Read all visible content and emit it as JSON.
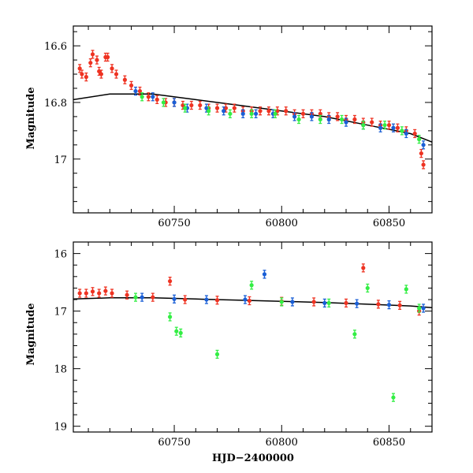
{
  "chart_data": [
    {
      "type": "scatter",
      "panel": "top",
      "title": "",
      "xlabel": "",
      "ylabel": "Magnitude",
      "xlim": [
        60703,
        60870
      ],
      "ylim": [
        16.53,
        17.19
      ],
      "y_inverted": true,
      "x_ticks": [
        60750,
        60800,
        60850
      ],
      "x_tick_labels": [
        "60750",
        "60800",
        "60850"
      ],
      "y_ticks": [
        16.6,
        16.8,
        17.0
      ],
      "y_tick_labels": [
        "16.6",
        "16.8",
        "17"
      ],
      "grid": false,
      "legend": "none",
      "series": [
        {
          "color": "#ee3322",
          "values": [
            [
              60706,
              16.68
            ],
            [
              60707,
              16.7
            ],
            [
              60709,
              16.71
            ],
            [
              60711,
              16.66
            ],
            [
              60712,
              16.63
            ],
            [
              60714,
              16.65
            ],
            [
              60715,
              16.69
            ],
            [
              60716,
              16.7
            ],
            [
              60718,
              16.64
            ],
            [
              60719,
              16.64
            ],
            [
              60721,
              16.68
            ],
            [
              60723,
              16.7
            ],
            [
              60727,
              16.72
            ],
            [
              60730,
              16.74
            ],
            [
              60734,
              16.76
            ],
            [
              60738,
              16.78
            ],
            [
              60742,
              16.79
            ],
            [
              60746,
              16.8
            ],
            [
              60750,
              16.8
            ],
            [
              60754,
              16.81
            ],
            [
              60758,
              16.81
            ],
            [
              60762,
              16.81
            ],
            [
              60766,
              16.82
            ],
            [
              60770,
              16.82
            ],
            [
              60774,
              16.82
            ],
            [
              60778,
              16.82
            ],
            [
              60782,
              16.83
            ],
            [
              60786,
              16.83
            ],
            [
              60790,
              16.83
            ],
            [
              60794,
              16.83
            ],
            [
              60798,
              16.83
            ],
            [
              60802,
              16.83
            ],
            [
              60806,
              16.84
            ],
            [
              60810,
              16.84
            ],
            [
              60814,
              16.84
            ],
            [
              60818,
              16.84
            ],
            [
              60822,
              16.85
            ],
            [
              60826,
              16.85
            ],
            [
              60830,
              16.86
            ],
            [
              60834,
              16.86
            ],
            [
              60838,
              16.87
            ],
            [
              60842,
              16.87
            ],
            [
              60846,
              16.88
            ],
            [
              60850,
              16.88
            ],
            [
              60854,
              16.89
            ],
            [
              60858,
              16.9
            ],
            [
              60862,
              16.91
            ],
            [
              60865,
              16.98
            ],
            [
              60866,
              17.02
            ]
          ]
        },
        {
          "color": "#1a5fd6",
          "values": [
            [
              60732,
              16.76
            ],
            [
              60740,
              16.78
            ],
            [
              60750,
              16.8
            ],
            [
              60756,
              16.82
            ],
            [
              60765,
              16.82
            ],
            [
              60773,
              16.83
            ],
            [
              60782,
              16.84
            ],
            [
              60788,
              16.84
            ],
            [
              60796,
              16.84
            ],
            [
              60806,
              16.85
            ],
            [
              60814,
              16.85
            ],
            [
              60822,
              16.86
            ],
            [
              60830,
              16.87
            ],
            [
              60838,
              16.88
            ],
            [
              60846,
              16.89
            ],
            [
              60852,
              16.89
            ],
            [
              60858,
              16.91
            ],
            [
              60866,
              16.95
            ]
          ]
        },
        {
          "color": "#33ee44",
          "values": [
            [
              60735,
              16.78
            ],
            [
              60745,
              16.8
            ],
            [
              60755,
              16.82
            ],
            [
              60766,
              16.83
            ],
            [
              60776,
              16.84
            ],
            [
              60786,
              16.84
            ],
            [
              60797,
              16.84
            ],
            [
              60808,
              16.86
            ],
            [
              60818,
              16.86
            ],
            [
              60828,
              16.86
            ],
            [
              60838,
              16.88
            ],
            [
              60848,
              16.88
            ],
            [
              60856,
              16.9
            ],
            [
              60864,
              16.93
            ]
          ]
        }
      ],
      "model_curve": {
        "color": "#000000",
        "values": [
          [
            60703,
            16.79
          ],
          [
            60720,
            16.77
          ],
          [
            60740,
            16.77
          ],
          [
            60760,
            16.79
          ],
          [
            60780,
            16.81
          ],
          [
            60800,
            16.83
          ],
          [
            60820,
            16.85
          ],
          [
            60840,
            16.88
          ],
          [
            60860,
            16.91
          ],
          [
            60870,
            16.94
          ]
        ]
      }
    },
    {
      "type": "scatter",
      "panel": "bottom",
      "title": "",
      "xlabel": "HJD−2400000",
      "ylabel": "Magnitude",
      "xlim": [
        60703,
        60870
      ],
      "ylim": [
        15.8,
        19.1
      ],
      "y_inverted": true,
      "x_ticks": [
        60750,
        60800,
        60850
      ],
      "x_tick_labels": [
        "60750",
        "60800",
        "60850"
      ],
      "y_ticks": [
        16,
        17,
        18,
        19
      ],
      "y_tick_labels": [
        "16",
        "17",
        "18",
        "19"
      ],
      "grid": false,
      "legend": "none",
      "series": [
        {
          "color": "#ee3322",
          "values": [
            [
              60706,
              16.69
            ],
            [
              60709,
              16.69
            ],
            [
              60712,
              16.66
            ],
            [
              60715,
              16.69
            ],
            [
              60718,
              16.65
            ],
            [
              60721,
              16.69
            ],
            [
              60728,
              16.72
            ],
            [
              60740,
              16.76
            ],
            [
              60748,
              16.48
            ],
            [
              60755,
              16.8
            ],
            [
              60770,
              16.81
            ],
            [
              60785,
              16.82
            ],
            [
              60800,
              16.83
            ],
            [
              60815,
              16.84
            ],
            [
              60830,
              16.86
            ],
            [
              60838,
              16.25
            ],
            [
              60845,
              16.88
            ],
            [
              60855,
              16.9
            ],
            [
              60864,
              17.0
            ]
          ]
        },
        {
          "color": "#1a5fd6",
          "values": [
            [
              60735,
              16.76
            ],
            [
              60750,
              16.79
            ],
            [
              60765,
              16.8
            ],
            [
              60783,
              16.8
            ],
            [
              60792,
              16.36
            ],
            [
              60805,
              16.84
            ],
            [
              60820,
              16.86
            ],
            [
              60835,
              16.87
            ],
            [
              60850,
              16.89
            ],
            [
              60866,
              16.95
            ]
          ]
        },
        {
          "color": "#33ee44",
          "values": [
            [
              60732,
              16.76
            ],
            [
              60748,
              17.1
            ],
            [
              60751,
              17.35
            ],
            [
              60753,
              17.38
            ],
            [
              60770,
              17.75
            ],
            [
              60786,
              16.55
            ],
            [
              60800,
              16.84
            ],
            [
              60822,
              16.86
            ],
            [
              60834,
              17.4
            ],
            [
              60840,
              16.6
            ],
            [
              60852,
              18.5
            ],
            [
              60858,
              16.62
            ],
            [
              60864,
              16.95
            ]
          ]
        }
      ],
      "model_curve": {
        "color": "#000000",
        "values": [
          [
            60703,
            16.79
          ],
          [
            60720,
            16.77
          ],
          [
            60740,
            16.77
          ],
          [
            60760,
            16.79
          ],
          [
            60780,
            16.81
          ],
          [
            60800,
            16.83
          ],
          [
            60820,
            16.85
          ],
          [
            60840,
            16.88
          ],
          [
            60860,
            16.91
          ],
          [
            60870,
            16.94
          ]
        ]
      }
    }
  ]
}
